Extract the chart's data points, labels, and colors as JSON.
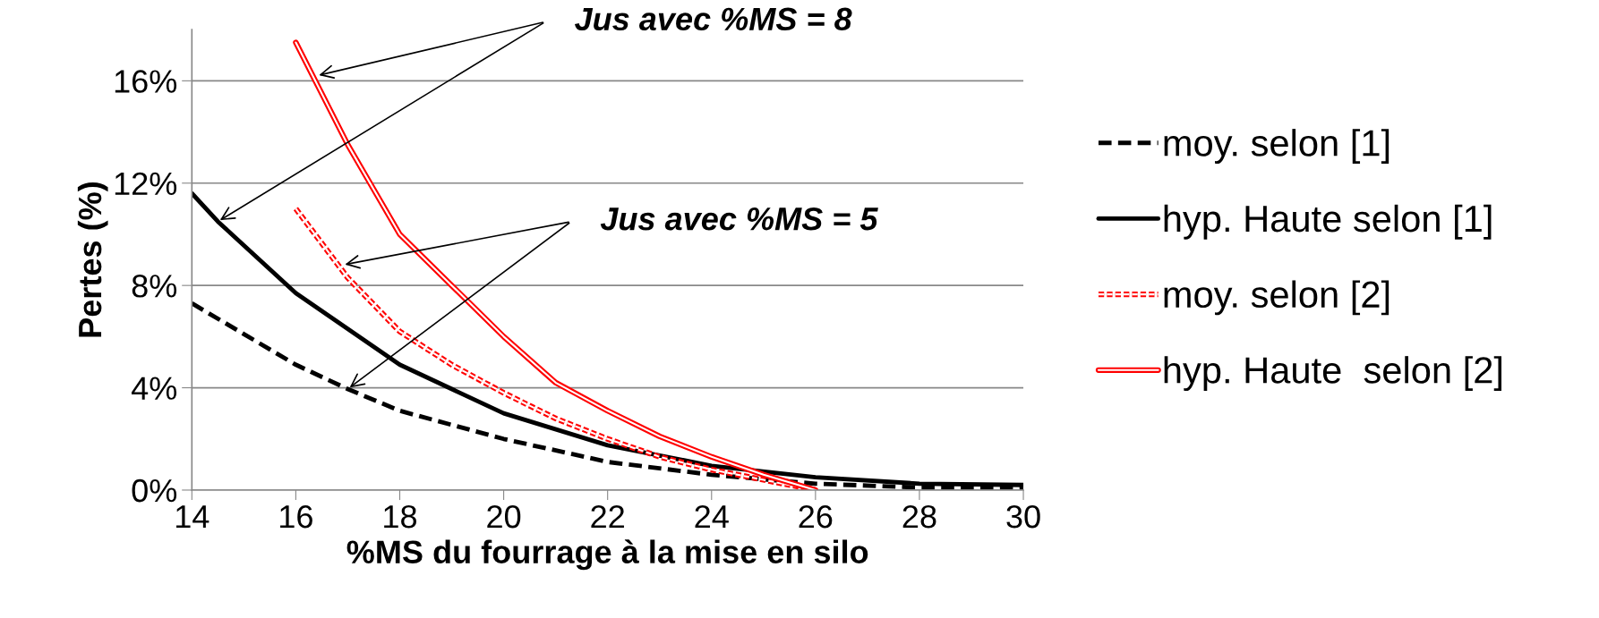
{
  "chart_data": {
    "type": "line",
    "xlabel": "%MS du fourrage à la mise en silo",
    "ylabel": "Pertes (%)",
    "xlim": [
      14,
      30
    ],
    "xticks": [
      14,
      16,
      18,
      20,
      22,
      24,
      26,
      28,
      30
    ],
    "ylim": [
      0,
      18
    ],
    "yticks": [
      {
        "value": 0,
        "label": "0%"
      },
      {
        "value": 4,
        "label": "4%"
      },
      {
        "value": 8,
        "label": "8%"
      },
      {
        "value": 12,
        "label": "12%"
      },
      {
        "value": 16,
        "label": "16%"
      }
    ],
    "grid": "y",
    "legend": "right",
    "marker": "none",
    "series": [
      {
        "name": "moy. selon [1]",
        "color": "#000000",
        "line_style": "dashed",
        "x": [
          14,
          16,
          17,
          18,
          20,
          22,
          24,
          26,
          28,
          30
        ],
        "values": [
          7.3,
          4.9,
          3.95,
          3.1,
          2.0,
          1.1,
          0.6,
          0.25,
          0.1,
          0.1
        ]
      },
      {
        "name": "hyp. Haute selon [1]",
        "color": "#000000",
        "line_style": "solid",
        "x": [
          14,
          14.5,
          16,
          18,
          20,
          22,
          24,
          26,
          28,
          30
        ],
        "values": [
          11.6,
          10.5,
          7.7,
          4.9,
          3.0,
          1.75,
          0.95,
          0.5,
          0.25,
          0.2
        ]
      },
      {
        "name": "moy. selon [2]",
        "color": "#ff0000",
        "line_style": "dashed",
        "x": [
          16,
          17,
          18,
          19,
          20,
          21,
          22,
          23,
          24,
          25,
          26
        ],
        "values": [
          11,
          8.3,
          6.2,
          4.9,
          3.8,
          2.8,
          2.0,
          1.3,
          0.8,
          0.4,
          0.0
        ]
      },
      {
        "name": "hyp. Haute  selon [2]",
        "color": "#ff0000",
        "line_style": "solid",
        "x": [
          16,
          17,
          18,
          19,
          20,
          21,
          22,
          23,
          24,
          25,
          26
        ],
        "values": [
          17.5,
          13.5,
          10,
          8,
          6.0,
          4.2,
          3.1,
          2.1,
          1.3,
          0.6,
          0.0
        ]
      }
    ],
    "annotations": [
      {
        "text": "Jus avec %MS = 8",
        "x": 16.4,
        "y": 16.2
      },
      {
        "text": "Jus avec %MS = 5",
        "x": 16.9,
        "y": 8.8
      }
    ]
  }
}
